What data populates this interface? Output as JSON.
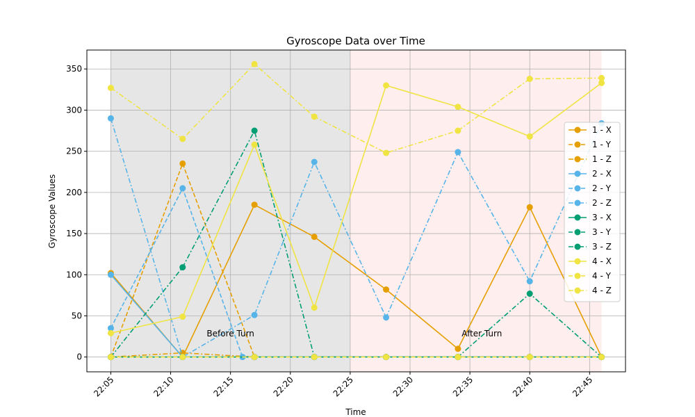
{
  "chart_data": {
    "type": "line",
    "title": "Gyroscope Data over Time",
    "xlabel": "Time",
    "ylabel": "Gyroscope Values",
    "x": [
      "22:05",
      "22:11",
      "22:16",
      "22:17",
      "22:22",
      "22:28",
      "22:34",
      "22:40",
      "22:46"
    ],
    "x_ticks": [
      "22:05",
      "22:10",
      "22:15",
      "22:20",
      "22:25",
      "22:30",
      "22:35",
      "22:40",
      "22:45"
    ],
    "xlim": [
      "22:03",
      "22:48"
    ],
    "ylim": [
      -18,
      373
    ],
    "y_ticks": [
      0,
      50,
      100,
      150,
      200,
      250,
      300,
      350
    ],
    "grid": true,
    "legend_position": "center-right",
    "shaded_regions": [
      {
        "from": "22:05",
        "to": "22:25",
        "color": "#e6e6e6"
      },
      {
        "from": "22:25",
        "to": "22:46",
        "color": "#ffeeee"
      }
    ],
    "annotations": [
      {
        "text": "Before Turn",
        "x": "22:15",
        "y": 25
      },
      {
        "text": "After Turn",
        "x": "22:36",
        "y": 25
      }
    ],
    "series": [
      {
        "name": "1 - X",
        "color": "#E69F00",
        "style": "solid",
        "values": [
          102,
          0,
          null,
          185,
          146,
          82,
          10,
          182,
          0
        ]
      },
      {
        "name": "1 - Y",
        "color": "#E69F00",
        "style": "dashed",
        "values": [
          0,
          235,
          null,
          0,
          0,
          0,
          0,
          0,
          0
        ]
      },
      {
        "name": "1 - Z",
        "color": "#E69F00",
        "style": "dashdot",
        "values": [
          0,
          5,
          null,
          0,
          0,
          0,
          0,
          0,
          0
        ]
      },
      {
        "name": "2 - X",
        "color": "#56B4E9",
        "style": "solid",
        "values": [
          100,
          0,
          null,
          0,
          0,
          0,
          0,
          0,
          0
        ]
      },
      {
        "name": "2 - Y",
        "color": "#56B4E9",
        "style": "dashed",
        "values": [
          35,
          205,
          0,
          0,
          0,
          0,
          0,
          0,
          0
        ]
      },
      {
        "name": "2 - Z",
        "color": "#56B4E9",
        "style": "dashdot",
        "values": [
          290,
          0,
          null,
          51,
          237,
          48,
          249,
          92,
          284
        ]
      },
      {
        "name": "3 - X",
        "color": "#009E73",
        "style": "solid",
        "values": [
          0,
          0,
          null,
          0,
          0,
          0,
          0,
          0,
          0
        ]
      },
      {
        "name": "3 - Y",
        "color": "#009E73",
        "style": "dashed",
        "values": [
          0,
          0,
          null,
          0,
          0,
          0,
          0,
          0,
          0
        ]
      },
      {
        "name": "3 - Z",
        "color": "#009E73",
        "style": "dashdot",
        "values": [
          0,
          109,
          null,
          275,
          0,
          0,
          0,
          77,
          0
        ]
      },
      {
        "name": "4 - X",
        "color": "#F0E442",
        "style": "solid",
        "values": [
          29,
          49,
          null,
          258,
          60,
          330,
          304,
          268,
          333
        ]
      },
      {
        "name": "4 - Y",
        "color": "#F0E442",
        "style": "dashed",
        "values": [
          0,
          0,
          null,
          0,
          0,
          0,
          0,
          0,
          0
        ]
      },
      {
        "name": "4 - Z",
        "color": "#F0E442",
        "style": "dashdot",
        "values": [
          327,
          265,
          null,
          356,
          292,
          248,
          275,
          338,
          339
        ]
      }
    ]
  }
}
